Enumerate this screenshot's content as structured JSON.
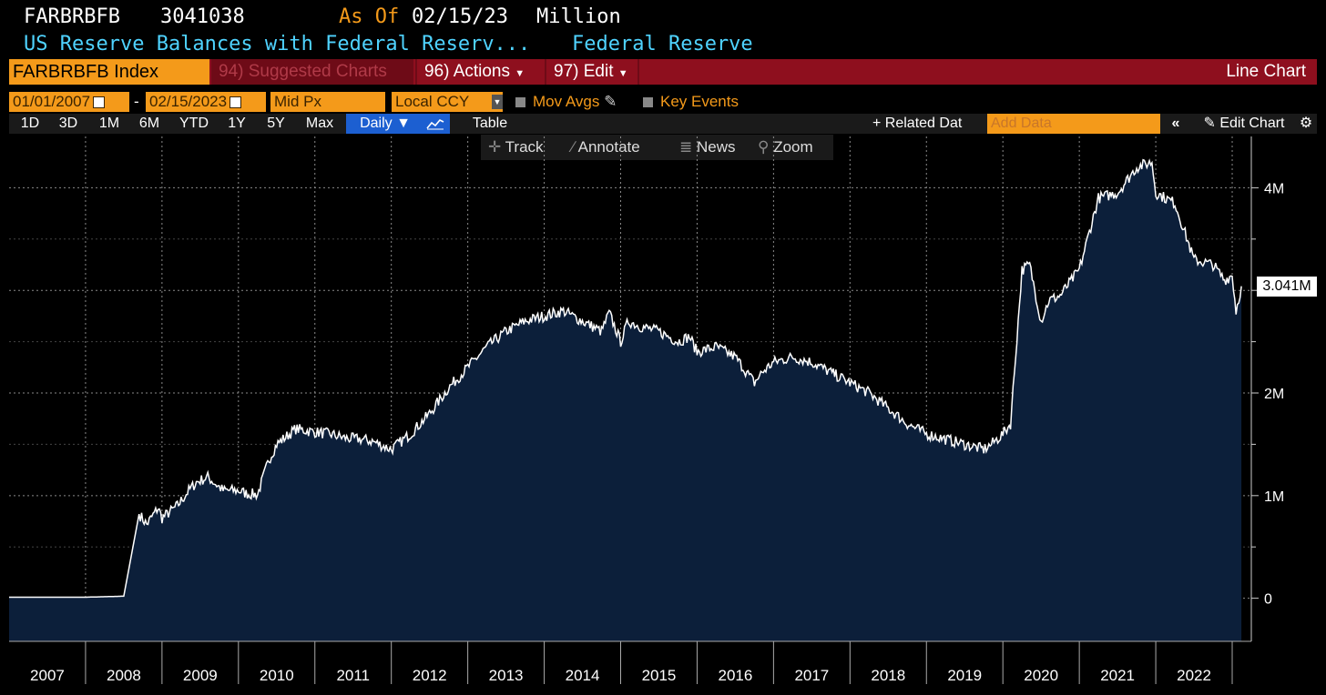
{
  "header": {
    "ticker": "FARBRBFB",
    "value": "3041038",
    "as_of_label": "As Of",
    "as_of_date": "02/15/23",
    "unit": "Million",
    "description": "US Reserve Balances with Federal Reserv...",
    "source": "Federal Reserve"
  },
  "toolbar": {
    "security": "FARBRBFB Index",
    "suggested": "94) Suggested Charts",
    "actions": "96) Actions",
    "edit": "97) Edit",
    "chart_type": "Line Chart"
  },
  "controls": {
    "start_date": "01/01/2007",
    "dash": "-",
    "end_date": "02/15/2023",
    "price_field": "Mid Px",
    "currency": "Local CCY",
    "mov_avgs": "Mov Avgs",
    "key_events": "Key Events"
  },
  "ranges": {
    "items": [
      "1D",
      "3D",
      "1M",
      "6M",
      "YTD",
      "1Y",
      "5Y",
      "Max"
    ],
    "frequency": "Daily",
    "table": "Table",
    "related": "+ Related Dat",
    "add_data_placeholder": "Add Data",
    "edit_chart": "Edit Chart"
  },
  "tools": {
    "track": "Track",
    "annotate": "Annotate",
    "news": "News",
    "zoom": "Zoom"
  },
  "colors": {
    "accent_orange": "#f49a1a",
    "bar_red": "#8e0f1e",
    "fill": "#0c1f3a",
    "line": "#ffffff",
    "title_blue": "#4fd3ff"
  },
  "chart_data": {
    "type": "area",
    "last_value_label": "3.041M",
    "y_ticks": [
      {
        "v": 0,
        "label": "0"
      },
      {
        "v": 1000000,
        "label": "1M"
      },
      {
        "v": 2000000,
        "label": "2M"
      },
      {
        "v": 3000000,
        "label": "3M"
      },
      {
        "v": 4000000,
        "label": "4M"
      }
    ],
    "x_tick_labels": [
      "2007",
      "2008",
      "2009",
      "2010",
      "2011",
      "2012",
      "2013",
      "2014",
      "2015",
      "2016",
      "2017",
      "2018",
      "2019",
      "2020",
      "2021",
      "2022"
    ],
    "xlim": [
      2007.0,
      2023.25
    ],
    "ylim": [
      -420000,
      4500000
    ],
    "series": [
      {
        "x": [
          2007.0,
          2007.5,
          2008.0,
          2008.5,
          2008.7,
          2008.8,
          2008.95,
          2009.0,
          2009.2,
          2009.35,
          2009.45,
          2009.6,
          2009.8,
          2010.0,
          2010.1,
          2010.25,
          2010.4,
          2010.5,
          2010.75,
          2011.0,
          2011.2,
          2011.4,
          2011.6,
          2011.75,
          2012.0,
          2012.25,
          2012.5,
          2012.75,
          2013.0,
          2013.25,
          2013.5,
          2013.75,
          2014.0,
          2014.25,
          2014.5,
          2014.75,
          2014.85,
          2015.0,
          2015.1,
          2015.25,
          2015.5,
          2015.75,
          2015.9,
          2016.0,
          2016.25,
          2016.5,
          2016.75,
          2016.85,
          2017.0,
          2017.25,
          2017.5,
          2017.75,
          2018.0,
          2018.25,
          2018.5,
          2018.75,
          2019.0,
          2019.25,
          2019.5,
          2019.75,
          2019.85,
          2020.0,
          2020.1,
          2020.25,
          2020.35,
          2020.5,
          2020.6,
          2020.75,
          2021.0,
          2021.25,
          2021.5,
          2021.75,
          2021.95,
          2022.0,
          2022.25,
          2022.5,
          2022.75,
          2022.9,
          2023.0,
          2023.05,
          2023.12
        ],
        "y": [
          10000,
          10000,
          10000,
          20000,
          820000,
          720000,
          880000,
          780000,
          900000,
          1050000,
          1130000,
          1180000,
          1050000,
          1050000,
          1020000,
          1010000,
          1350000,
          1500000,
          1650000,
          1620000,
          1600000,
          1560000,
          1550000,
          1530000,
          1450000,
          1600000,
          1800000,
          2050000,
          2250000,
          2450000,
          2600000,
          2700000,
          2750000,
          2800000,
          2700000,
          2600000,
          2780000,
          2500000,
          2700000,
          2650000,
          2600000,
          2500000,
          2550000,
          2400000,
          2450000,
          2350000,
          2100000,
          2200000,
          2300000,
          2350000,
          2300000,
          2200000,
          2100000,
          2000000,
          1850000,
          1700000,
          1600000,
          1550000,
          1500000,
          1450000,
          1500000,
          1600000,
          1700000,
          3200000,
          3250000,
          2700000,
          2900000,
          2950000,
          3200000,
          3900000,
          3950000,
          4200000,
          4250000,
          3950000,
          3850000,
          3300000,
          3250000,
          3100000,
          3150000,
          2800000,
          3041000
        ]
      }
    ]
  }
}
